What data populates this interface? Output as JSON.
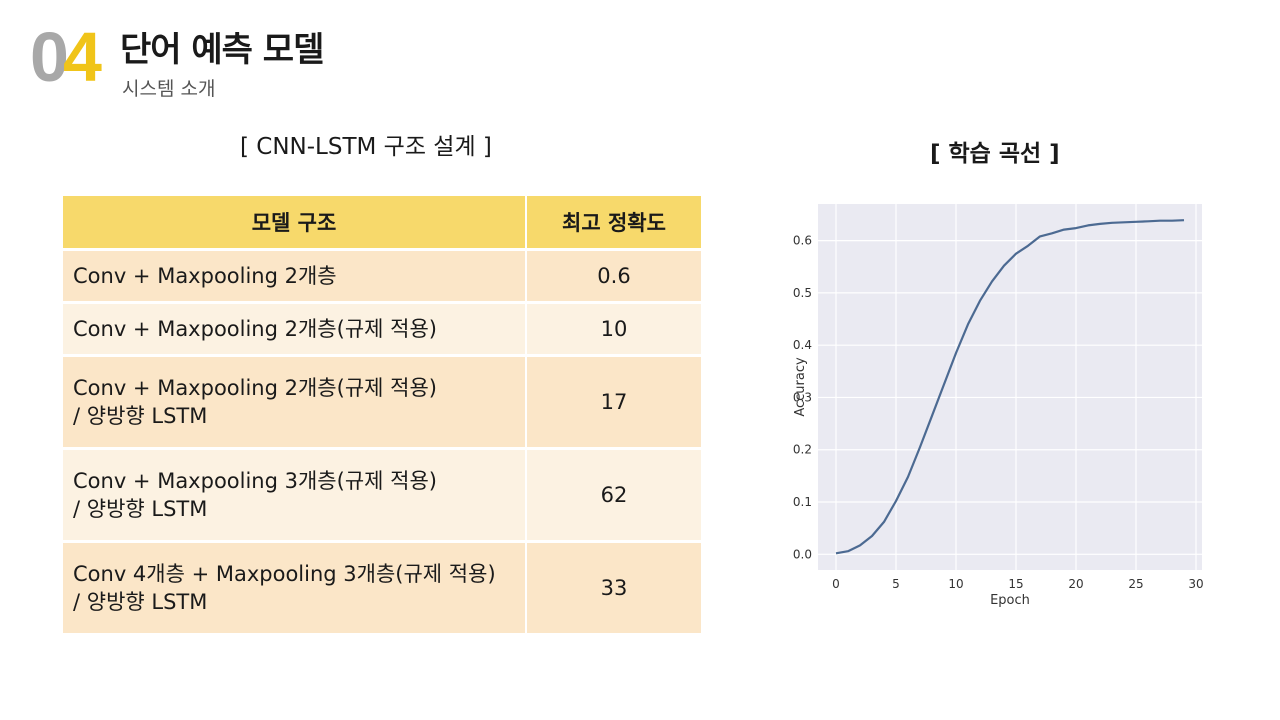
{
  "header": {
    "section_number_0": "0",
    "section_number_4": "4",
    "title": "단어 예측 모델",
    "subtitle": "시스템 소개"
  },
  "left_section": {
    "title": "[ CNN-LSTM 구조 설계 ]",
    "table": {
      "headers": [
        "모델 구조",
        "최고 정확도"
      ],
      "rows": [
        {
          "line1": "Conv + Maxpooling 2개층",
          "line2": "",
          "accuracy": "0.6"
        },
        {
          "line1": "Conv + Maxpooling 2개층(규제 적용)",
          "line2": "",
          "accuracy": "10"
        },
        {
          "line1": "Conv + Maxpooling 2개층(규제 적용)",
          "line2": "/ 양방향 LSTM",
          "accuracy": "17"
        },
        {
          "line1": "Conv + Maxpooling 3개층(규제 적용)",
          "line2": "/ 양방향 LSTM",
          "accuracy": "62"
        },
        {
          "line1": "Conv 4개층 + Maxpooling 3개층(규제 적용)",
          "line2": "/ 양방향 LSTM",
          "accuracy": "33"
        }
      ]
    }
  },
  "right_section": {
    "title": "[ 학습 곡선 ]"
  },
  "chart_data": {
    "type": "line",
    "title": "",
    "xlabel": "Epoch",
    "ylabel": "Accuracy",
    "xlim": [
      -1.5,
      30.5
    ],
    "ylim": [
      -0.03,
      0.67
    ],
    "xticks": [
      0,
      5,
      10,
      15,
      20,
      25,
      30
    ],
    "yticks": [
      0.0,
      0.1,
      0.2,
      0.3,
      0.4,
      0.5,
      0.6
    ],
    "ytick_labels": [
      "0.0",
      "0.1",
      "0.2",
      "0.3",
      "0.4",
      "0.5",
      "0.6"
    ],
    "grid": true,
    "background": "#eaeaf2",
    "line_color": "#4c6a92",
    "series": [
      {
        "x": [
          0,
          1,
          2,
          3,
          4,
          5,
          6,
          7,
          8,
          9,
          10,
          11,
          12,
          13,
          14,
          15,
          16,
          17,
          18,
          19,
          20,
          21,
          22,
          23,
          24,
          25,
          26,
          27,
          28,
          29
        ],
        "values": [
          0.002,
          0.006,
          0.017,
          0.035,
          0.062,
          0.102,
          0.148,
          0.205,
          0.265,
          0.325,
          0.385,
          0.44,
          0.485,
          0.522,
          0.552,
          0.575,
          0.59,
          0.608,
          0.614,
          0.621,
          0.624,
          0.629,
          0.632,
          0.634,
          0.635,
          0.636,
          0.637,
          0.638,
          0.638,
          0.639
        ]
      }
    ]
  }
}
